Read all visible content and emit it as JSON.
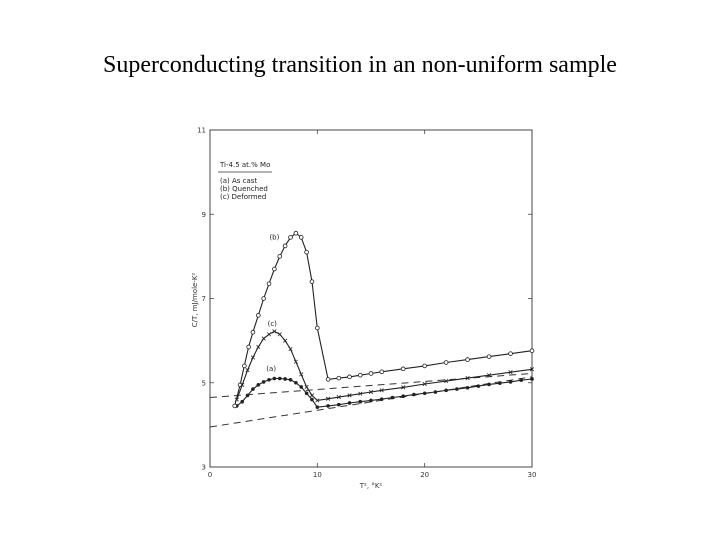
{
  "slide": {
    "title": "Superconducting transition in an non-uniform sample"
  },
  "chart_data": {
    "type": "line",
    "title": "",
    "xlabel": "T², °K²",
    "ylabel": "C/T, mJ/mole-K²",
    "xlim": [
      0,
      30
    ],
    "ylim": [
      3,
      11
    ],
    "xticks": [
      "0",
      "10",
      "20",
      "30"
    ],
    "yticks": [
      "3",
      "5",
      "7",
      "9",
      "11"
    ],
    "grid": false,
    "legend": {
      "placement": "top-left",
      "heading": "Ti-4.5 at.% Mo",
      "entries": [
        "(a) As cast",
        "(b) Quenched",
        "(c) Deformed"
      ]
    },
    "series": [
      {
        "name": "(a)",
        "marker": "filled-circle",
        "x": [
          2.5,
          3,
          3.5,
          4,
          4.5,
          5,
          5.5,
          6,
          6.5,
          7,
          7.5,
          8,
          8.5,
          9,
          9.5,
          10,
          11,
          12,
          13,
          14,
          15,
          16,
          17,
          18,
          19,
          20,
          21,
          22,
          23,
          24,
          25,
          26,
          27,
          28,
          29,
          30
        ],
        "y": [
          4.45,
          4.55,
          4.7,
          4.85,
          4.95,
          5.02,
          5.07,
          5.1,
          5.1,
          5.09,
          5.07,
          5.0,
          4.9,
          4.75,
          4.6,
          4.42,
          4.45,
          4.48,
          4.52,
          4.55,
          4.58,
          4.61,
          4.65,
          4.68,
          4.72,
          4.75,
          4.78,
          4.82,
          4.85,
          4.88,
          4.92,
          4.96,
          4.99,
          5.02,
          5.06,
          5.09
        ]
      },
      {
        "name": "(b)",
        "marker": "open-circle",
        "x": [
          2.3,
          2.8,
          3.2,
          3.6,
          4,
          4.5,
          5,
          5.5,
          6,
          6.5,
          7,
          7.5,
          8,
          8.5,
          9,
          9.5,
          10,
          11,
          12,
          13,
          14,
          15,
          16,
          18,
          20,
          22,
          24,
          26,
          28,
          30
        ],
        "y": [
          4.45,
          4.95,
          5.4,
          5.85,
          6.2,
          6.6,
          7.0,
          7.35,
          7.7,
          8.0,
          8.25,
          8.45,
          8.55,
          8.45,
          8.1,
          7.4,
          6.3,
          5.08,
          5.11,
          5.14,
          5.18,
          5.22,
          5.26,
          5.33,
          5.4,
          5.48,
          5.55,
          5.62,
          5.69,
          5.76
        ]
      },
      {
        "name": "(c)",
        "marker": "cross",
        "x": [
          2.5,
          3,
          3.5,
          4,
          4.5,
          5,
          5.5,
          6,
          6.5,
          7,
          7.5,
          8,
          8.5,
          9,
          9.5,
          10,
          11,
          12,
          13,
          14,
          15,
          16,
          18,
          20,
          22,
          24,
          26,
          28,
          30
        ],
        "y": [
          4.6,
          4.95,
          5.3,
          5.6,
          5.85,
          6.05,
          6.15,
          6.22,
          6.15,
          6.0,
          5.8,
          5.5,
          5.2,
          4.9,
          4.7,
          4.58,
          4.62,
          4.66,
          4.7,
          4.74,
          4.78,
          4.82,
          4.89,
          4.97,
          5.04,
          5.11,
          5.18,
          5.25,
          5.32
        ]
      }
    ],
    "extrapolations": [
      {
        "style": "dashed",
        "x": [
          0,
          30
        ],
        "y": [
          3.95,
          5.14
        ]
      },
      {
        "style": "dashed",
        "x": [
          0,
          30
        ],
        "y": [
          4.65,
          5.22
        ]
      }
    ],
    "series_annotations": [
      {
        "text": "(b)",
        "x": 6.0,
        "y": 8.4
      },
      {
        "text": "(c)",
        "x": 5.8,
        "y": 6.35
      },
      {
        "text": "(a)",
        "x": 5.7,
        "y": 5.28
      }
    ]
  }
}
